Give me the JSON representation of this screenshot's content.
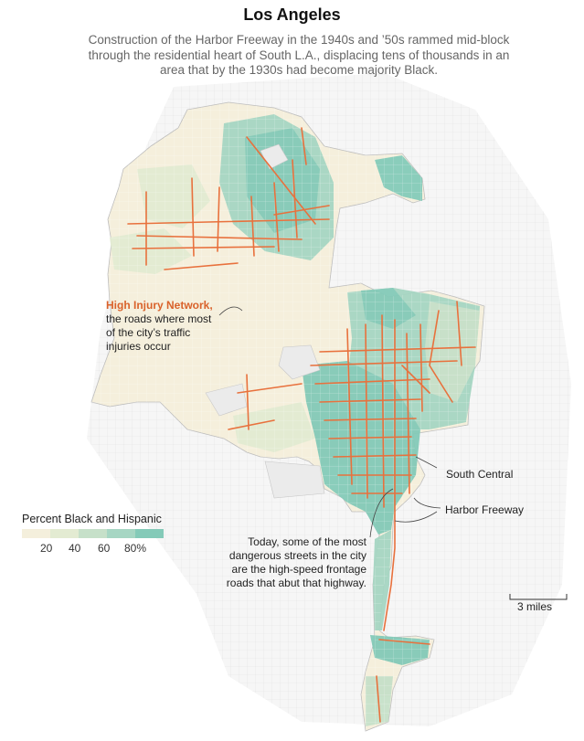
{
  "title": "Los Angeles",
  "subtitle": "Construction of the Harbor Freeway in the 1940s and ’50s rammed mid-block through the residential heart of South L.A., displacing tens of thousands in an area that by the 1930s had become majority Black.",
  "annotations": {
    "hin_title": "High Injury Network,",
    "hin_line1": "the roads where most",
    "hin_line2": "of the city’s traffic",
    "hin_line3": "injuries occur",
    "south_central": "South Central",
    "harbor_freeway": "Harbor Freeway",
    "today_line1": "Today, some of the most",
    "today_line2": "dangerous streets in the city",
    "today_line3": "are the high-speed frontage",
    "today_line4": "roads that abut that highway."
  },
  "legend": {
    "title": "Percent Black and Hispanic",
    "colors": [
      "#f4efdc",
      "#e3ebd2",
      "#c6e0c9",
      "#a6d6c3",
      "#84cab8"
    ],
    "ticks": [
      "20",
      "40",
      "60",
      "80%"
    ]
  },
  "scale": {
    "label": "3 miles"
  },
  "colors": {
    "high_injury": "#e8713d",
    "land_low": "#f5efdc",
    "land_high": "#8fcfbd",
    "outside": "#ebebeb"
  }
}
